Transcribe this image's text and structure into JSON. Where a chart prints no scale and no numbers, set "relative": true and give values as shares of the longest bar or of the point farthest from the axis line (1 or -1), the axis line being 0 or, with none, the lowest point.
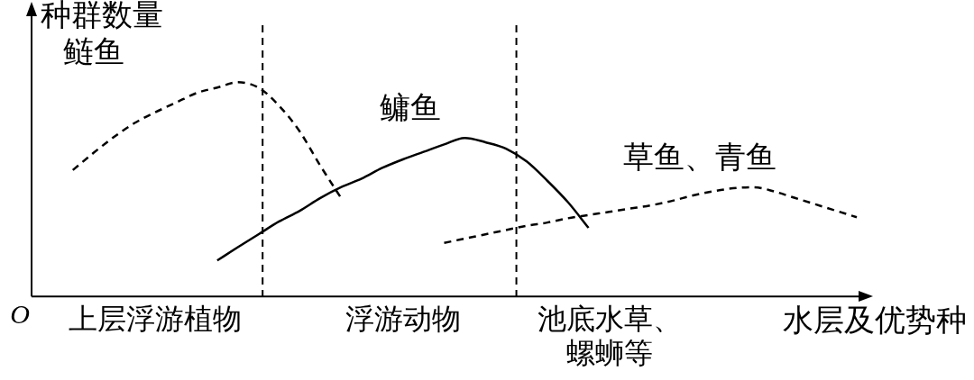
{
  "chart_data": {
    "type": "line",
    "relative": true,
    "ylabel": "种群数量",
    "xlabel": "水层及优势种",
    "annotations": [
      "O"
    ],
    "categories": [
      null,
      null,
      null,
      null,
      null,
      null,
      "上层浮游植物",
      null,
      null,
      null,
      null,
      null,
      null,
      null,
      null,
      null,
      null,
      null,
      "浮游动物",
      null,
      null,
      null,
      null,
      null,
      null,
      null,
      null,
      null,
      "池底水草、螺蛳等",
      null,
      null,
      null,
      null,
      null,
      null,
      null,
      null,
      null,
      null,
      null,
      null
    ],
    "grid": false,
    "legend": false,
    "marker": "none",
    "series": [
      {
        "name": "鲢鱼",
        "color": "#000000",
        "line_style": "dashed",
        "values": [
          null,
          null,
          0.59,
          0.67,
          0.745,
          0.81,
          0.86,
          0.905,
          0.95,
          0.975,
          1,
          0.975,
          0.89,
          0.77,
          0.61,
          0.46,
          null,
          null,
          null,
          null,
          null,
          null,
          null,
          null,
          null,
          null,
          null,
          null,
          null,
          null,
          null,
          null,
          null,
          null,
          null,
          null,
          null,
          null,
          null,
          null,
          null
        ]
      },
      {
        "name": "鳙鱼",
        "color": "#000000",
        "line_style": "solid",
        "values": [
          null,
          null,
          null,
          null,
          null,
          null,
          null,
          null,
          null,
          0.168,
          0.23,
          0.29,
          0.35,
          0.4,
          0.46,
          0.51,
          0.55,
          0.6,
          0.64,
          0.675,
          0.71,
          0.74,
          0.72,
          0.69,
          0.63,
          0.54,
          0.44,
          0.32,
          null,
          null,
          null,
          null,
          null,
          null,
          null,
          null,
          null,
          null,
          null,
          null,
          null
        ]
      },
      {
        "name": "草鱼、青鱼",
        "color": "#000000",
        "line_style": "dashed",
        "values": [
          null,
          null,
          null,
          null,
          null,
          null,
          null,
          null,
          null,
          null,
          null,
          null,
          null,
          null,
          null,
          null,
          null,
          null,
          null,
          null,
          0.25,
          0.27,
          0.29,
          0.31,
          0.33,
          0.345,
          0.365,
          0.38,
          0.395,
          0.41,
          0.425,
          0.445,
          0.47,
          0.49,
          0.505,
          0.51,
          0.49,
          0.46,
          0.43,
          0.4,
          0.37
        ]
      }
    ]
  }
}
